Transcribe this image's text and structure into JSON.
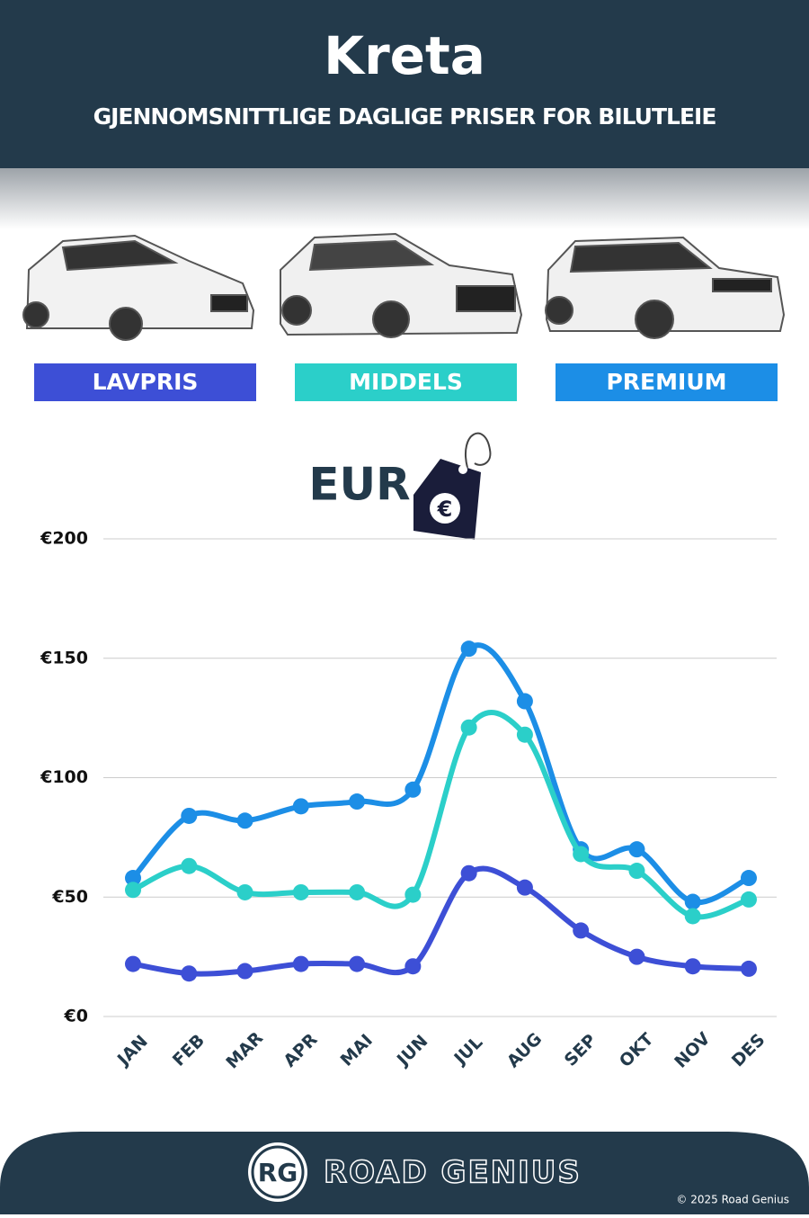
{
  "chart_data": {
    "type": "line",
    "title": "Kreta",
    "subtitle": "GJENNOMSNITTLIGE DAGLIGE PRISER FOR BILUTLEIE",
    "currency_label": "EUR",
    "currency_icon": "€",
    "categories": [
      "JAN",
      "FEB",
      "MAR",
      "APR",
      "MAI",
      "JUN",
      "JUL",
      "AUG",
      "SEP",
      "OKT",
      "NOV",
      "DES"
    ],
    "series": [
      {
        "name": "LAVPRIS",
        "color": "#3d4fd6",
        "values": [
          22,
          18,
          19,
          22,
          22,
          21,
          60,
          54,
          36,
          25,
          21,
          20
        ]
      },
      {
        "name": "MIDDELS",
        "color": "#2bcfc9",
        "values": [
          53,
          63,
          52,
          52,
          52,
          51,
          121,
          118,
          68,
          61,
          42,
          49
        ]
      },
      {
        "name": "PREMIUM",
        "color": "#1c8ee6",
        "values": [
          58,
          84,
          82,
          88,
          90,
          95,
          154,
          132,
          70,
          70,
          48,
          58
        ]
      }
    ],
    "ylim": [
      0,
      200
    ],
    "yticks": [
      {
        "value": 0,
        "label": "€0"
      },
      {
        "value": 50,
        "label": "€50"
      },
      {
        "value": 100,
        "label": "€100"
      },
      {
        "value": 150,
        "label": "€150"
      },
      {
        "value": 200,
        "label": "€200"
      }
    ],
    "grid": true
  },
  "footer": {
    "logo": "RG",
    "brand": "ROAD GENIUS",
    "copyright": "© 2025 Road Genius"
  }
}
